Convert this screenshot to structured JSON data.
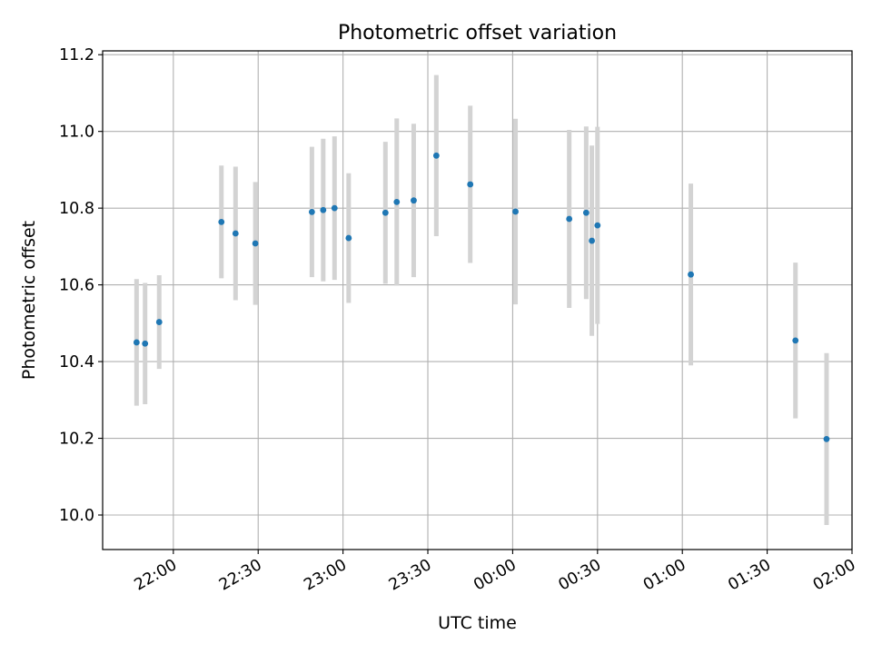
{
  "chart_data": {
    "type": "scatter",
    "title": "Photometric offset variation",
    "xlabel": "UTC time",
    "ylabel": "Photometric offset",
    "x_axis_kind": "time (HH:MM), spans midnight",
    "xlim": [
      "21:35",
      "02:00"
    ],
    "ylim": [
      9.91,
      11.21
    ],
    "x_ticks": [
      "22:00",
      "22:30",
      "23:00",
      "23:30",
      "00:00",
      "00:30",
      "01:00",
      "01:30",
      "02:00"
    ],
    "y_ticks": [
      "10.0",
      "10.2",
      "10.4",
      "10.6",
      "10.8",
      "11.0",
      "11.2"
    ],
    "grid": true,
    "colors": {
      "points": "#1f77b4",
      "error_bars": "#d3d3d3",
      "grid": "#b0b0b0"
    },
    "points": [
      {
        "t": "21:47",
        "y": 10.45,
        "err": 0.165
      },
      {
        "t": "21:50",
        "y": 10.447,
        "err": 0.158
      },
      {
        "t": "21:55",
        "y": 10.503,
        "err": 0.122
      },
      {
        "t": "22:17",
        "y": 10.764,
        "err": 0.147
      },
      {
        "t": "22:22",
        "y": 10.734,
        "err": 0.174
      },
      {
        "t": "22:29",
        "y": 10.708,
        "err": 0.16
      },
      {
        "t": "22:49",
        "y": 10.79,
        "err": 0.17
      },
      {
        "t": "22:53",
        "y": 10.795,
        "err": 0.186
      },
      {
        "t": "22:57",
        "y": 10.8,
        "err": 0.187
      },
      {
        "t": "23:02",
        "y": 10.722,
        "err": 0.169
      },
      {
        "t": "23:15",
        "y": 10.788,
        "err": 0.185
      },
      {
        "t": "23:19",
        "y": 10.816,
        "err": 0.218
      },
      {
        "t": "23:25",
        "y": 10.82,
        "err": 0.2
      },
      {
        "t": "23:33",
        "y": 10.937,
        "err": 0.21
      },
      {
        "t": "23:45",
        "y": 10.862,
        "err": 0.205
      },
      {
        "t": "00:01",
        "y": 10.791,
        "err": 0.242
      },
      {
        "t": "00:20",
        "y": 10.772,
        "err": 0.232
      },
      {
        "t": "00:26",
        "y": 10.788,
        "err": 0.225
      },
      {
        "t": "00:28",
        "y": 10.715,
        "err": 0.248
      },
      {
        "t": "00:30",
        "y": 10.755,
        "err": 0.257
      },
      {
        "t": "01:03",
        "y": 10.627,
        "err": 0.237
      },
      {
        "t": "01:40",
        "y": 10.455,
        "err": 0.203
      },
      {
        "t": "01:51",
        "y": 10.198,
        "err": 0.224
      }
    ]
  }
}
